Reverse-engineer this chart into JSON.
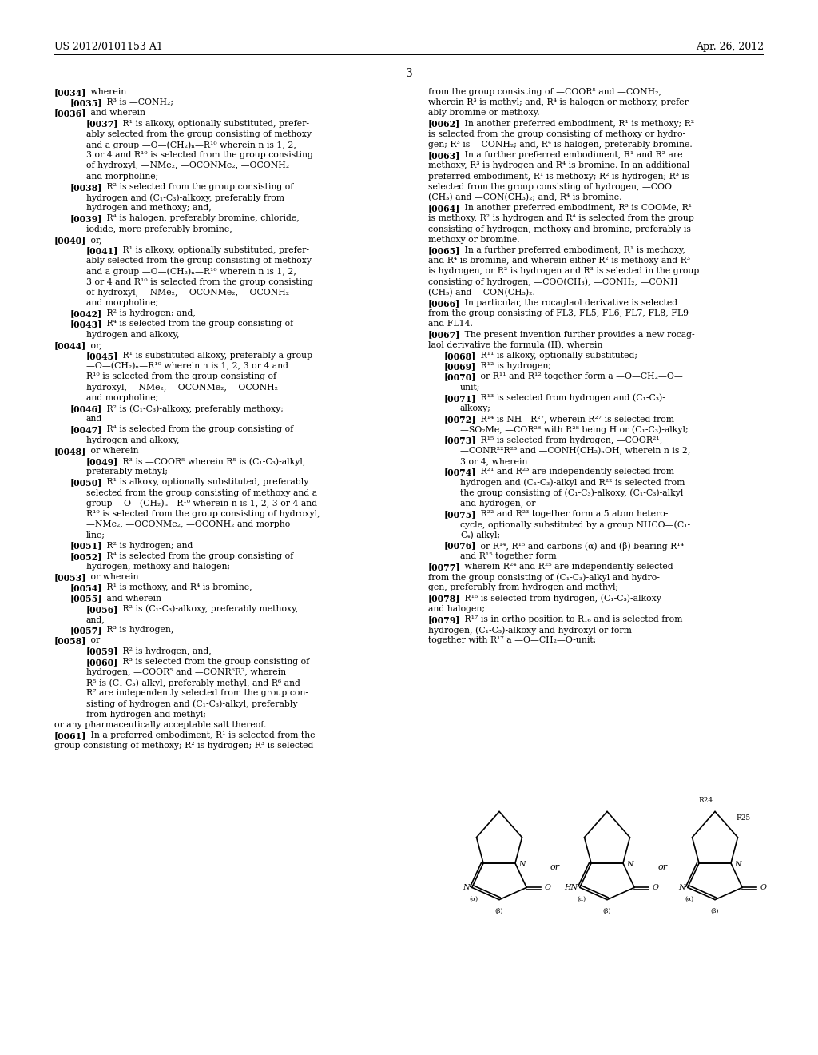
{
  "header_left": "US 2012/0101153 A1",
  "header_right": "Apr. 26, 2012",
  "page_number": "3",
  "background_color": "#ffffff",
  "text_color": "#000000"
}
